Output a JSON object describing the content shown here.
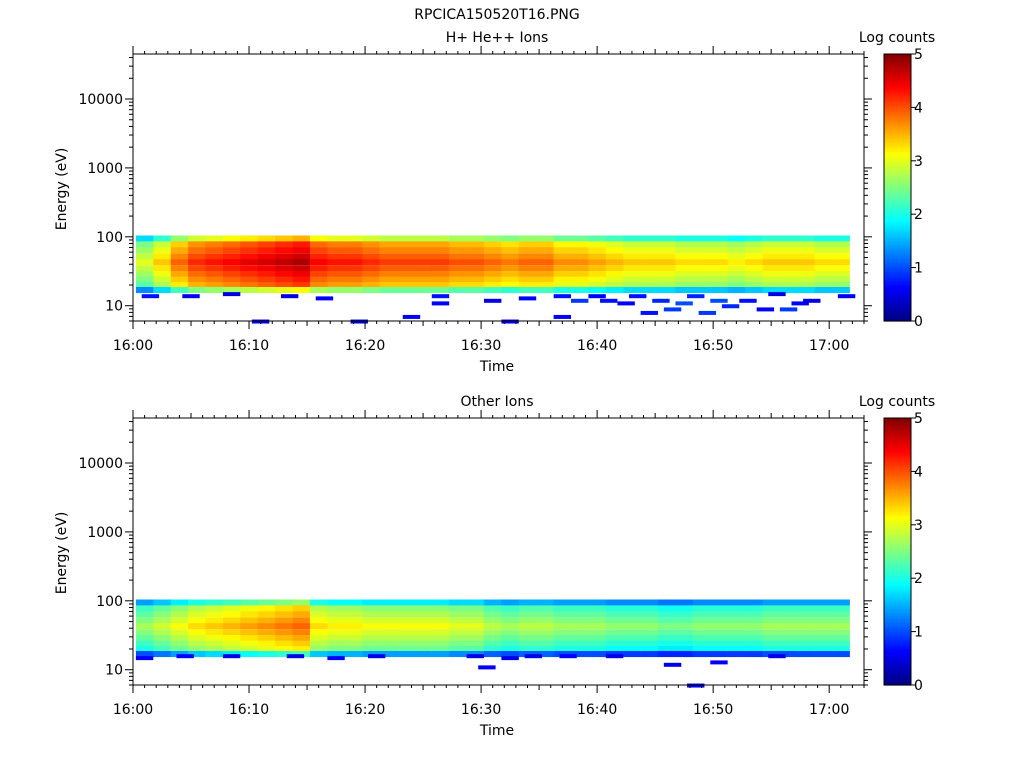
{
  "figure_title": "RPCICA150520T16.PNG",
  "chart_data": [
    {
      "type": "heatmap",
      "title": "H+ He++ Ions",
      "xlabel": "Time",
      "ylabel": "Energy (eV)",
      "x_ticks": [
        "16:00",
        "16:10",
        "16:20",
        "16:30",
        "16:40",
        "16:50",
        "17:00"
      ],
      "x_range": [
        "16:00",
        "17:03"
      ],
      "y_scale": "log",
      "y_ticks": [
        "10",
        "100",
        "1000",
        "10000"
      ],
      "y_range": [
        6,
        45000
      ],
      "colorbar_label": "Log counts",
      "colorbar_ticks": [
        "0",
        "1",
        "2",
        "3",
        "4",
        "5"
      ],
      "colorbar_range": [
        0,
        5
      ],
      "colormap": "jet",
      "time_bins_min": [
        1.0,
        2.5,
        4.0,
        5.5,
        7.0,
        8.5,
        10.0,
        11.5,
        13.0,
        14.5,
        16.0,
        17.5,
        19.0,
        20.5,
        22.0,
        23.5,
        25.0,
        26.5,
        28.0,
        29.5,
        31.0,
        32.5,
        34.0,
        35.5,
        37.0,
        38.5,
        40.0,
        41.5,
        43.0,
        44.5,
        46.0,
        47.5,
        49.0,
        50.5,
        52.0,
        53.5,
        55.0,
        56.5,
        58.0,
        59.5,
        61.0
      ],
      "energy_bins_eV": [
        95,
        78,
        64,
        52,
        43,
        35,
        29,
        24,
        20,
        17
      ],
      "peak_log_counts": [
        3.0,
        3.4,
        3.9,
        4.2,
        4.3,
        4.4,
        4.5,
        4.6,
        4.7,
        4.8,
        4.4,
        4.3,
        4.3,
        4.2,
        4.1,
        4.1,
        4.1,
        4.1,
        4.0,
        4.0,
        3.9,
        3.8,
        3.9,
        3.9,
        3.7,
        3.7,
        3.6,
        3.5,
        3.4,
        3.4,
        3.4,
        3.3,
        3.3,
        3.3,
        3.2,
        3.3,
        3.4,
        3.4,
        3.4,
        3.3,
        3.3
      ],
      "low_energy_events": [
        {
          "t": 1.5,
          "e": 14,
          "v": 0.7
        },
        {
          "t": 5.0,
          "e": 14,
          "v": 0.6
        },
        {
          "t": 8.5,
          "e": 15,
          "v": 0.5
        },
        {
          "t": 11.0,
          "e": 6,
          "v": 0.6
        },
        {
          "t": 13.5,
          "e": 14,
          "v": 0.5
        },
        {
          "t": 16.5,
          "e": 13,
          "v": 0.6
        },
        {
          "t": 19.5,
          "e": 6,
          "v": 0.5
        },
        {
          "t": 24.0,
          "e": 7,
          "v": 0.6
        },
        {
          "t": 26.5,
          "e": 14,
          "v": 0.7
        },
        {
          "t": 26.5,
          "e": 11,
          "v": 0.6
        },
        {
          "t": 31.0,
          "e": 12,
          "v": 0.5
        },
        {
          "t": 32.5,
          "e": 6,
          "v": 0.6
        },
        {
          "t": 34.0,
          "e": 13,
          "v": 0.6
        },
        {
          "t": 37.0,
          "e": 14,
          "v": 0.7
        },
        {
          "t": 37.0,
          "e": 7,
          "v": 0.6
        },
        {
          "t": 38.5,
          "e": 12,
          "v": 0.9
        },
        {
          "t": 40.0,
          "e": 14,
          "v": 0.6
        },
        {
          "t": 41.0,
          "e": 12,
          "v": 0.7
        },
        {
          "t": 42.5,
          "e": 11,
          "v": 0.6
        },
        {
          "t": 43.5,
          "e": 14,
          "v": 0.7
        },
        {
          "t": 44.5,
          "e": 8,
          "v": 0.7
        },
        {
          "t": 45.5,
          "e": 12,
          "v": 0.8
        },
        {
          "t": 46.5,
          "e": 9,
          "v": 0.9
        },
        {
          "t": 47.5,
          "e": 11,
          "v": 1.0
        },
        {
          "t": 48.5,
          "e": 14,
          "v": 0.8
        },
        {
          "t": 49.5,
          "e": 8,
          "v": 0.9
        },
        {
          "t": 50.5,
          "e": 12,
          "v": 1.0
        },
        {
          "t": 51.5,
          "e": 10,
          "v": 0.8
        },
        {
          "t": 53.0,
          "e": 12,
          "v": 0.7
        },
        {
          "t": 54.5,
          "e": 9,
          "v": 0.6
        },
        {
          "t": 55.5,
          "e": 15,
          "v": 0.5
        },
        {
          "t": 56.5,
          "e": 9,
          "v": 0.9
        },
        {
          "t": 57.5,
          "e": 11,
          "v": 0.6
        },
        {
          "t": 58.5,
          "e": 12,
          "v": 0.5
        },
        {
          "t": 61.5,
          "e": 14,
          "v": 0.6
        }
      ]
    },
    {
      "type": "heatmap",
      "title": "Other Ions",
      "xlabel": "Time",
      "ylabel": "Energy (eV)",
      "x_ticks": [
        "16:00",
        "16:10",
        "16:20",
        "16:30",
        "16:40",
        "16:50",
        "17:00"
      ],
      "x_range": [
        "16:00",
        "17:03"
      ],
      "y_scale": "log",
      "y_ticks": [
        "10",
        "100",
        "1000",
        "10000"
      ],
      "y_range": [
        6,
        45000
      ],
      "colorbar_label": "Log counts",
      "colorbar_ticks": [
        "0",
        "1",
        "2",
        "3",
        "4",
        "5"
      ],
      "colorbar_range": [
        0,
        5
      ],
      "colormap": "jet",
      "time_bins_min": [
        1.0,
        2.5,
        4.0,
        5.5,
        7.0,
        8.5,
        10.0,
        11.5,
        13.0,
        14.5,
        16.0,
        17.5,
        19.0,
        20.5,
        22.0,
        23.5,
        25.0,
        26.5,
        28.0,
        29.5,
        31.0,
        32.5,
        34.0,
        35.5,
        37.0,
        38.5,
        40.0,
        41.5,
        43.0,
        44.5,
        46.0,
        47.5,
        49.0,
        50.5,
        52.0,
        53.5,
        55.0,
        56.5,
        58.0,
        59.5,
        61.0
      ],
      "energy_bins_eV": [
        95,
        78,
        64,
        52,
        43,
        35,
        29,
        24,
        20,
        17
      ],
      "peak_log_counts": [
        2.7,
        2.9,
        3.1,
        3.3,
        3.4,
        3.5,
        3.6,
        3.7,
        3.8,
        3.9,
        3.3,
        3.2,
        3.2,
        3.1,
        3.1,
        3.1,
        3.1,
        3.1,
        3.0,
        3.0,
        2.8,
        2.7,
        2.8,
        2.8,
        2.7,
        2.7,
        2.7,
        2.6,
        2.6,
        2.6,
        2.5,
        2.5,
        2.6,
        2.6,
        2.6,
        2.6,
        2.7,
        2.7,
        2.7,
        2.7,
        2.7
      ],
      "low_energy_events": [
        {
          "t": 1.0,
          "e": 15,
          "v": 0.6
        },
        {
          "t": 4.5,
          "e": 16,
          "v": 0.6
        },
        {
          "t": 8.5,
          "e": 16,
          "v": 0.5
        },
        {
          "t": 14.0,
          "e": 16,
          "v": 0.5
        },
        {
          "t": 17.5,
          "e": 15,
          "v": 0.6
        },
        {
          "t": 21.0,
          "e": 16,
          "v": 0.5
        },
        {
          "t": 29.5,
          "e": 16,
          "v": 0.5
        },
        {
          "t": 30.5,
          "e": 11,
          "v": 0.6
        },
        {
          "t": 32.5,
          "e": 15,
          "v": 0.5
        },
        {
          "t": 34.5,
          "e": 16,
          "v": 0.5
        },
        {
          "t": 37.5,
          "e": 16,
          "v": 0.6
        },
        {
          "t": 41.5,
          "e": 16,
          "v": 0.5
        },
        {
          "t": 46.5,
          "e": 12,
          "v": 0.5
        },
        {
          "t": 48.5,
          "e": 6,
          "v": 0.6
        },
        {
          "t": 50.5,
          "e": 13,
          "v": 0.6
        },
        {
          "t": 55.5,
          "e": 16,
          "v": 0.5
        }
      ]
    }
  ]
}
